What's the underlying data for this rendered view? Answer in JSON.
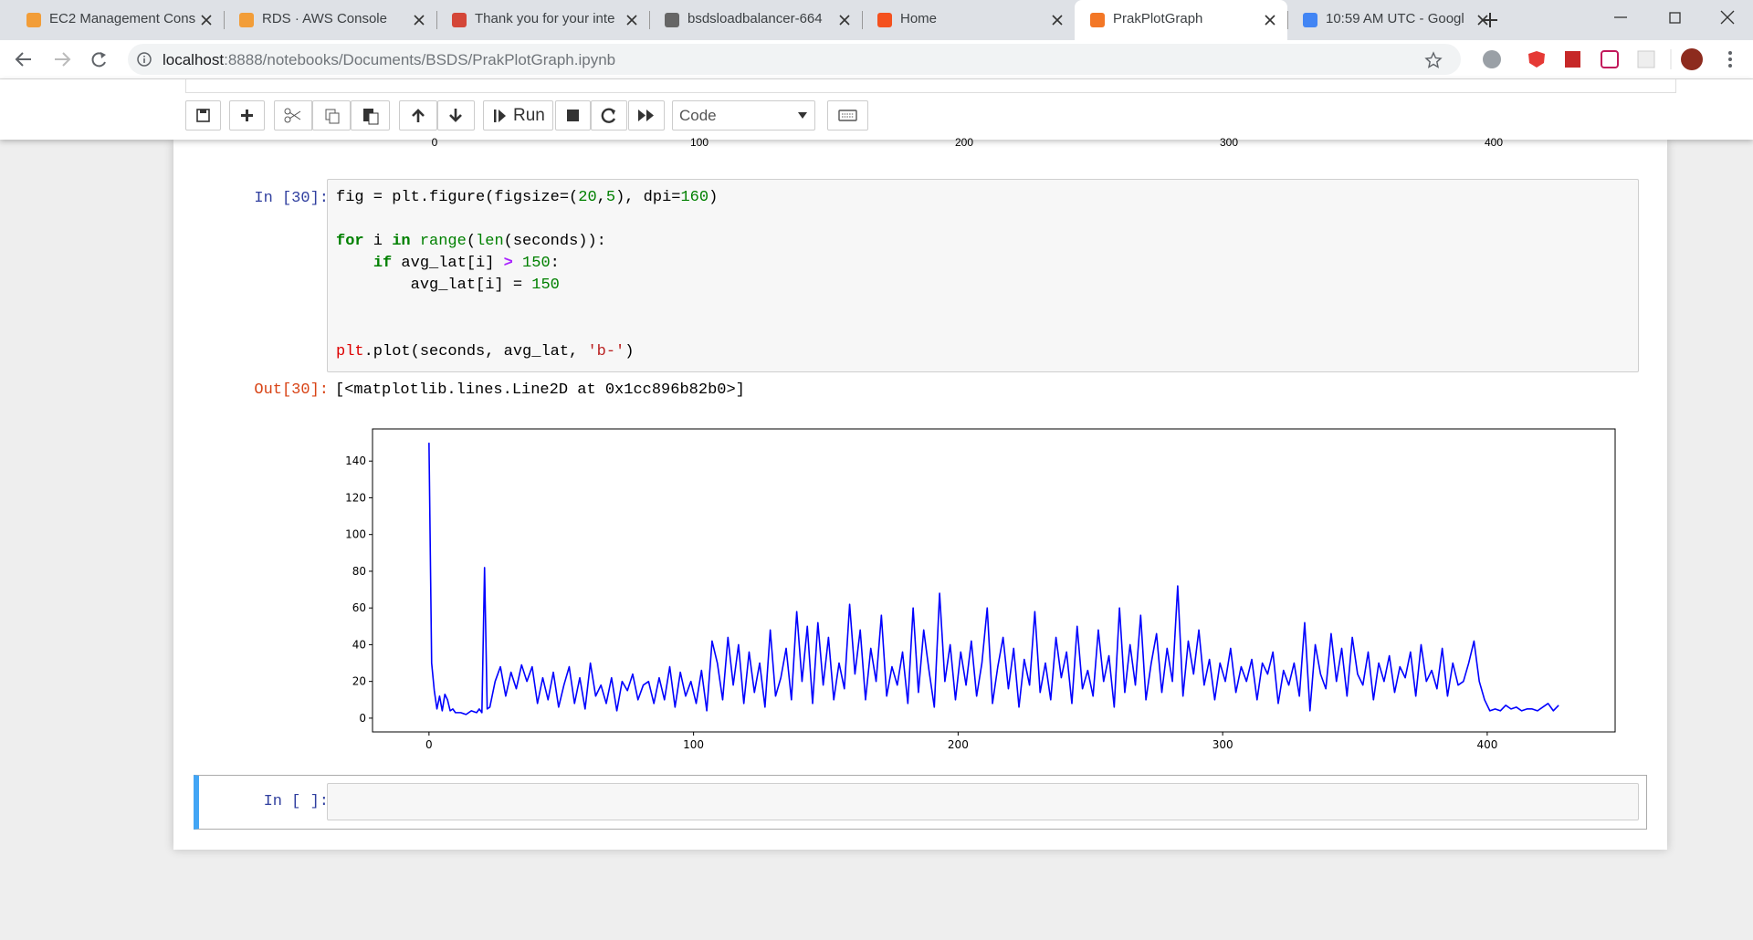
{
  "browser": {
    "tabs": [
      "EC2 Management Cons",
      "RDS · AWS Console",
      "Thank you for your inte",
      "bsdsloadbalancer-664",
      "Home",
      "PrakPlotGraph",
      "10:59 AM UTC - Googl"
    ],
    "url_host": "localhost",
    "url_path": ":8888/notebooks/Documents/BSDS/PrakPlotGraph.ipynb"
  },
  "toolbar": {
    "run": "Run",
    "cell_type": "Code"
  },
  "previous_output": {
    "x_tick_labels": [
      0,
      100,
      200,
      300,
      400
    ]
  },
  "cells": {
    "input_prompt": "In [30]:",
    "code_lines": [
      "fig = plt.figure(figsize=(20,5), dpi=160)",
      "for i in range(len(seconds)):",
      "    if avg_lat[i] > 150:",
      "        avg_lat[i] = 150",
      "plt.plot(seconds, avg_lat, 'b-')"
    ],
    "output_prompt": "Out[30]:",
    "output_text": "[<matplotlib.lines.Line2D at 0x1cc896b82b0>]",
    "empty_prompt": "In [ ]:"
  },
  "chart_data": {
    "type": "line",
    "x": [
      0,
      1,
      2,
      3,
      4,
      5,
      6,
      7,
      8,
      9,
      10,
      12,
      14,
      16,
      18,
      19,
      20,
      21,
      22,
      23,
      25,
      27,
      29,
      31,
      33,
      35,
      37,
      39,
      41,
      43,
      45,
      47,
      49,
      51,
      53,
      55,
      57,
      59,
      61,
      63,
      65,
      67,
      69,
      71,
      73,
      75,
      77,
      79,
      81,
      83,
      85,
      87,
      89,
      91,
      93,
      95,
      97,
      99,
      101,
      103,
      105,
      107,
      109,
      111,
      113,
      115,
      117,
      119,
      121,
      123,
      125,
      127,
      129,
      131,
      133,
      135,
      137,
      139,
      141,
      143,
      145,
      147,
      149,
      151,
      153,
      155,
      157,
      159,
      161,
      163,
      165,
      167,
      169,
      171,
      173,
      175,
      177,
      179,
      181,
      183,
      185,
      187,
      189,
      191,
      193,
      195,
      197,
      199,
      201,
      203,
      205,
      207,
      209,
      211,
      213,
      215,
      217,
      219,
      221,
      223,
      225,
      227,
      229,
      231,
      233,
      235,
      237,
      239,
      241,
      243,
      245,
      247,
      249,
      251,
      253,
      255,
      257,
      259,
      261,
      263,
      265,
      267,
      269,
      271,
      273,
      275,
      277,
      279,
      281,
      283,
      285,
      287,
      289,
      291,
      293,
      295,
      297,
      299,
      301,
      303,
      305,
      307,
      309,
      311,
      313,
      315,
      317,
      319,
      321,
      323,
      325,
      327,
      329,
      331,
      333,
      335,
      337,
      339,
      341,
      343,
      345,
      347,
      349,
      351,
      353,
      355,
      357,
      359,
      361,
      363,
      365,
      367,
      369,
      371,
      373,
      375,
      377,
      379,
      381,
      383,
      385,
      387,
      389,
      391,
      393,
      395,
      397,
      399,
      401,
      403,
      405,
      407,
      409,
      411,
      413,
      415,
      417,
      419,
      421,
      423,
      425,
      427
    ],
    "series": [
      {
        "color": "#0000ff",
        "values": [
          150,
          30,
          15,
          5,
          12,
          4,
          13,
          10,
          4,
          5,
          3,
          3,
          2,
          4,
          3,
          5,
          3,
          82,
          5,
          6,
          20,
          28,
          12,
          25,
          16,
          29,
          20,
          28,
          8,
          22,
          10,
          25,
          6,
          18,
          28,
          8,
          22,
          5,
          30,
          12,
          18,
          8,
          22,
          4,
          20,
          15,
          24,
          10,
          18,
          20,
          8,
          22,
          10,
          28,
          6,
          25,
          12,
          20,
          8,
          26,
          4,
          42,
          30,
          10,
          44,
          18,
          40,
          8,
          36,
          14,
          30,
          6,
          48,
          12,
          22,
          38,
          10,
          58,
          20,
          50,
          8,
          52,
          18,
          44,
          10,
          30,
          16,
          62,
          24,
          48,
          10,
          38,
          20,
          56,
          12,
          28,
          18,
          36,
          8,
          60,
          14,
          48,
          26,
          6,
          68,
          20,
          40,
          10,
          36,
          18,
          42,
          12,
          30,
          60,
          8,
          28,
          44,
          16,
          38,
          6,
          32,
          18,
          58,
          14,
          30,
          10,
          44,
          22,
          36,
          8,
          50,
          16,
          26,
          12,
          48,
          20,
          34,
          6,
          60,
          14,
          40,
          18,
          56,
          10,
          30,
          46,
          14,
          38,
          20,
          72,
          12,
          42,
          24,
          48,
          18,
          32,
          10,
          30,
          20,
          38,
          14,
          28,
          20,
          32,
          10,
          30,
          24,
          36,
          8,
          26,
          18,
          30,
          12,
          52,
          4,
          40,
          24,
          16,
          46,
          20,
          38,
          12,
          44,
          24,
          18,
          36,
          10,
          30,
          20,
          34,
          14,
          28,
          22,
          36,
          12,
          40,
          20,
          26,
          16,
          38,
          12,
          30,
          18,
          20,
          30,
          42,
          20,
          10,
          4,
          5,
          4,
          7,
          5,
          6,
          4,
          5,
          5,
          4,
          6,
          8,
          4,
          7
        ]
      }
    ],
    "xlim": [
      -21.35,
      448.35
    ],
    "ylim": [
      -7.5,
      157.5
    ],
    "xticks": [
      0,
      100,
      200,
      300,
      400
    ],
    "yticks": [
      0,
      20,
      40,
      60,
      80,
      100,
      120,
      140
    ]
  }
}
